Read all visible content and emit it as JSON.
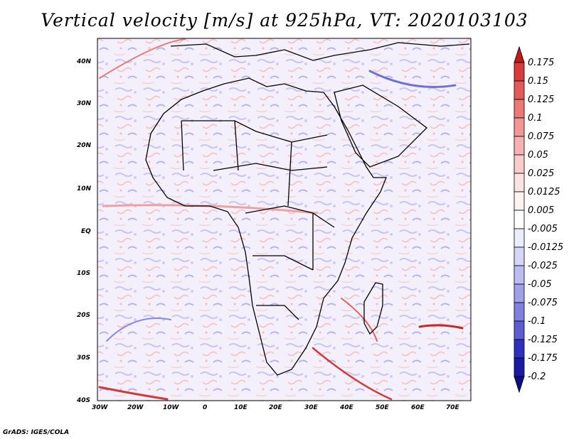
{
  "title": "Vertical velocity [m/s] at 925hPa, VT: 2020103103",
  "credit": "GrADS: IGES/COLA",
  "map": {
    "lon_labels": [
      "30W",
      "20W",
      "10W",
      "0",
      "10E",
      "20E",
      "30E",
      "40E",
      "50E",
      "60E",
      "70E"
    ],
    "lat_labels": [
      "40N",
      "30N",
      "20N",
      "10N",
      "EQ",
      "10S",
      "20S",
      "30S",
      "40S"
    ]
  },
  "colorbar": {
    "labels": [
      "0.175",
      "0.15",
      "0.125",
      "0.1",
      "0.075",
      "0.05",
      "0.025",
      "0.0125",
      "0.005",
      "-0.005",
      "-0.0125",
      "-0.025",
      "-0.05",
      "-0.075",
      "-0.1",
      "-0.125",
      "-0.175",
      "-0.2"
    ],
    "colors": [
      "#c41818",
      "#d93a3a",
      "#e45a5a",
      "#ec7878",
      "#f29696",
      "#f6b2b2",
      "#f9cccc",
      "#fce2e2",
      "#fff2f2",
      "#ffffff",
      "#ececff",
      "#d6d6f8",
      "#bcbcf2",
      "#a0a0ea",
      "#8080e0",
      "#5c5cd4",
      "#3030c0",
      "#1a1aa8",
      "#0e0e80"
    ]
  }
}
